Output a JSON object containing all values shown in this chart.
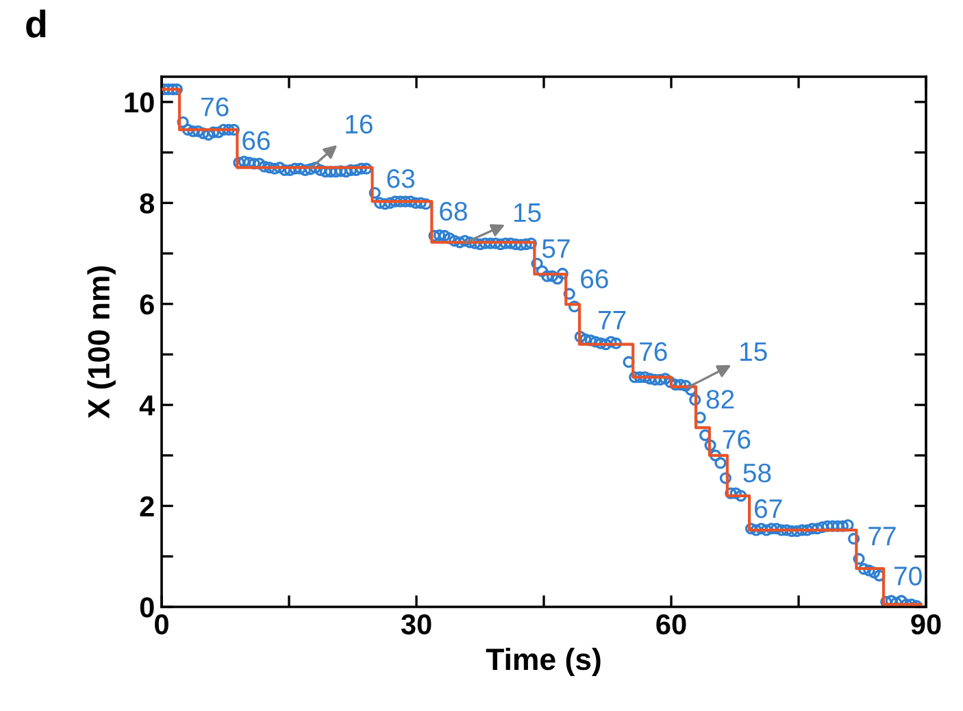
{
  "chart_data": {
    "type": "scatter",
    "title": "d",
    "xlabel": "Time (s)",
    "ylabel": "X (100 nm)",
    "xlim": [
      0,
      90
    ],
    "ylim": [
      0,
      10.5
    ],
    "xticks": [
      0,
      {
        "value": 15,
        "label": null
      },
      30,
      {
        "value": 45,
        "label": null
      },
      60,
      {
        "value": 75,
        "label": null
      },
      90
    ],
    "yticks": [
      0,
      {
        "value": 1,
        "label": null
      },
      2,
      {
        "value": 3,
        "label": null
      },
      4,
      {
        "value": 5,
        "label": null
      },
      6,
      {
        "value": 7,
        "label": null
      },
      8,
      {
        "value": 9,
        "label": null
      },
      10
    ],
    "grid": false,
    "series": [
      {
        "marker": "circle",
        "color": "#2f7fd0",
        "x": [
          0.3,
          0.8,
          1.3,
          1.8,
          2.5,
          3.1,
          3.7,
          4.3,
          4.9,
          5.5,
          6.1,
          6.7,
          7.3,
          7.9,
          8.5,
          9.1,
          9.7,
          10.3,
          10.9,
          11.5,
          12.1,
          12.7,
          13.3,
          13.9,
          14.5,
          15.1,
          15.7,
          16.3,
          16.9,
          17.5,
          18.1,
          18.7,
          19.3,
          19.9,
          20.5,
          21.1,
          21.7,
          22.3,
          22.9,
          23.5,
          24.1,
          25.1,
          25.7,
          26.3,
          26.9,
          27.5,
          28.1,
          28.7,
          29.3,
          29.9,
          30.5,
          31.1,
          32.1,
          32.7,
          33.3,
          33.9,
          34.5,
          35.1,
          35.7,
          36.3,
          36.9,
          37.5,
          38.1,
          38.7,
          39.3,
          39.9,
          40.5,
          41.1,
          41.7,
          42.3,
          42.9,
          43.5,
          44.2,
          44.8,
          45.4,
          46.0,
          46.6,
          47.2,
          48.0,
          48.6,
          49.3,
          49.9,
          50.5,
          51.1,
          51.7,
          52.3,
          52.9,
          53.5,
          55.0,
          55.7,
          56.3,
          56.9,
          57.5,
          58.1,
          58.7,
          59.3,
          59.9,
          60.5,
          61.1,
          61.7,
          62.3,
          62.8,
          63.4,
          64.0,
          64.6,
          65.2,
          65.8,
          66.4,
          67.0,
          67.6,
          68.2,
          69.4,
          70.0,
          70.6,
          71.2,
          71.8,
          72.4,
          73.0,
          73.6,
          74.2,
          74.8,
          75.4,
          76.0,
          76.6,
          77.2,
          77.8,
          78.4,
          79.0,
          79.6,
          80.2,
          80.8,
          81.5,
          82.1,
          82.7,
          83.3,
          83.9,
          84.5,
          85.3,
          85.9,
          86.5,
          87.1,
          87.7,
          88.3,
          88.9
        ],
        "values": [
          10.25,
          10.25,
          10.25,
          10.25,
          9.6,
          9.45,
          9.42,
          9.42,
          9.38,
          9.35,
          9.4,
          9.4,
          9.45,
          9.45,
          9.45,
          8.8,
          8.82,
          8.8,
          8.78,
          8.78,
          8.72,
          8.7,
          8.68,
          8.7,
          8.65,
          8.65,
          8.68,
          8.68,
          8.65,
          8.67,
          8.7,
          8.65,
          8.62,
          8.62,
          8.62,
          8.63,
          8.62,
          8.65,
          8.65,
          8.68,
          8.68,
          8.2,
          8.0,
          7.98,
          8.0,
          8.03,
          8.03,
          8.03,
          8.03,
          8.0,
          8.0,
          7.98,
          7.35,
          7.36,
          7.35,
          7.3,
          7.25,
          7.22,
          7.25,
          7.22,
          7.2,
          7.18,
          7.2,
          7.2,
          7.2,
          7.18,
          7.2,
          7.2,
          7.18,
          7.17,
          7.18,
          7.2,
          6.8,
          6.65,
          6.55,
          6.55,
          6.5,
          6.6,
          6.2,
          5.95,
          5.35,
          5.3,
          5.28,
          5.25,
          5.22,
          5.2,
          5.25,
          5.22,
          4.85,
          4.55,
          4.55,
          4.55,
          4.52,
          4.5,
          4.5,
          4.52,
          4.45,
          4.4,
          4.4,
          4.38,
          4.3,
          4.1,
          3.75,
          3.4,
          3.2,
          3.0,
          2.85,
          2.55,
          2.25,
          2.25,
          2.2,
          1.55,
          1.52,
          1.55,
          1.52,
          1.55,
          1.55,
          1.52,
          1.52,
          1.5,
          1.5,
          1.52,
          1.52,
          1.55,
          1.55,
          1.58,
          1.6,
          1.6,
          1.6,
          1.6,
          1.62,
          1.35,
          0.95,
          0.75,
          0.72,
          0.68,
          0.62,
          0.1,
          0.12,
          0.08,
          0.12,
          0.05,
          0.05,
          0.02
        ]
      },
      {
        "type": "step",
        "color": "#e8532a",
        "line_style": "solid",
        "x": [
          0,
          2.1,
          8.9,
          24.8,
          31.8,
          43.9,
          47.6,
          49.2,
          55.5,
          60.0,
          62.9,
          64.5,
          66.6,
          69.2,
          81.8,
          85.0,
          89.4
        ],
        "values": [
          10.25,
          9.45,
          8.7,
          8.03,
          7.22,
          6.59,
          5.99,
          5.2,
          4.55,
          4.36,
          3.55,
          3.0,
          2.2,
          1.52,
          0.76,
          0.05,
          0.05
        ]
      }
    ],
    "annotations": [
      {
        "text": "76",
        "x": 2.1,
        "y": 9.45
      },
      {
        "text": "66",
        "x": 8.9,
        "y": 8.7
      },
      {
        "text": "16",
        "x": 17.6,
        "y": 8.7
      },
      {
        "text": "63",
        "x": 24.8,
        "y": 8.03
      },
      {
        "text": "68",
        "x": 31.8,
        "y": 7.22
      },
      {
        "text": "15",
        "x": 35.8,
        "y": 7.22
      },
      {
        "text": "57",
        "x": 43.9,
        "y": 6.59
      },
      {
        "text": "66",
        "x": 47.6,
        "y": 5.99
      },
      {
        "text": "77",
        "x": 49.2,
        "y": 5.2
      },
      {
        "text": "76",
        "x": 55.5,
        "y": 4.55
      },
      {
        "text": "15",
        "x": 62.1,
        "y": 4.36
      },
      {
        "text": "82",
        "x": 62.9,
        "y": 3.55
      },
      {
        "text": "76",
        "x": 64.5,
        "y": 3.0
      },
      {
        "text": "58",
        "x": 66.6,
        "y": 2.2
      },
      {
        "text": "67",
        "x": 69.2,
        "y": 1.52
      },
      {
        "text": "77",
        "x": 81.8,
        "y": 0.76
      },
      {
        "text": "70",
        "x": 85.0,
        "y": 0.05
      }
    ]
  }
}
